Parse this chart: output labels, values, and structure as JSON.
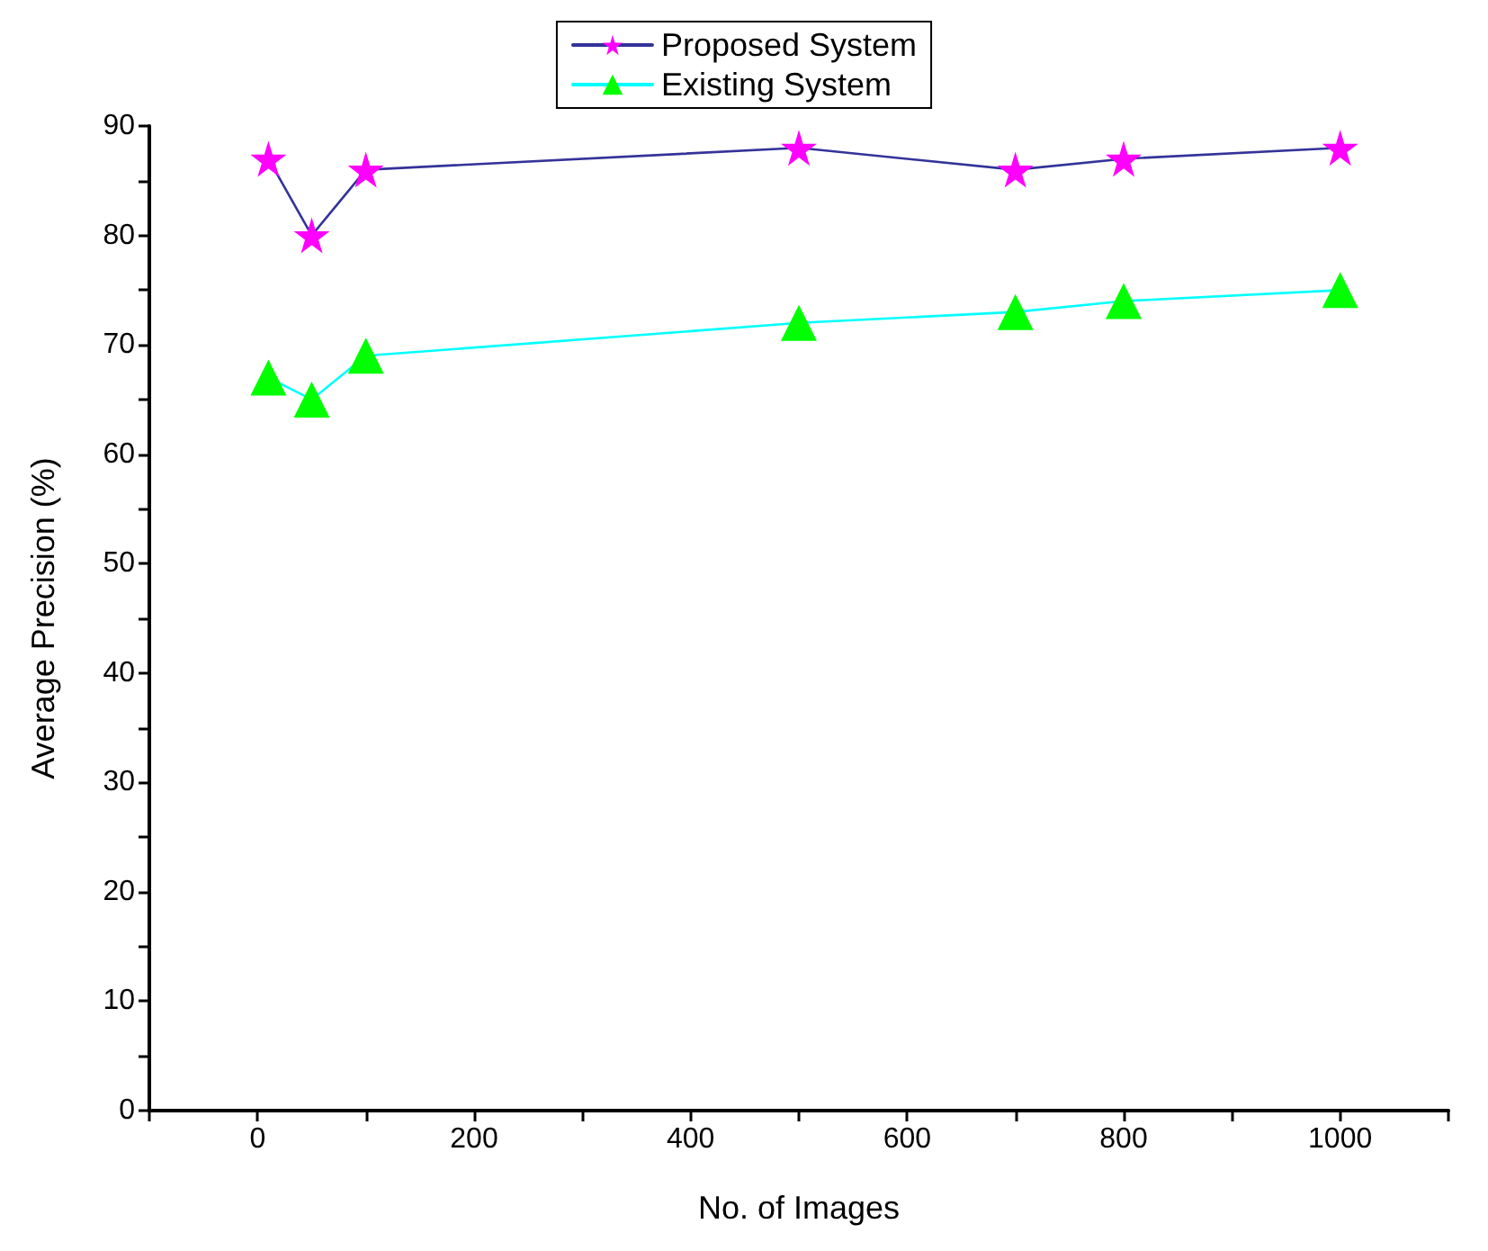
{
  "chart_data": {
    "type": "line",
    "xlabel": "No. of Images",
    "ylabel": "Average Precision (%)",
    "x": [
      10,
      50,
      100,
      500,
      700,
      800,
      1000
    ],
    "series": [
      {
        "name": "Proposed System",
        "color": "#ff00ff",
        "marker": "star",
        "values": [
          87,
          80,
          86,
          88,
          86,
          87,
          88
        ]
      },
      {
        "name": "Existing System",
        "color": "#00ff00",
        "marker": "triangle",
        "values": [
          67,
          65,
          69,
          72,
          73,
          74,
          75
        ]
      }
    ],
    "xlim": [
      -100,
      1100
    ],
    "xticks": [
      {
        "value": -100,
        "label": null
      },
      0,
      {
        "value": 100,
        "label": null
      },
      200,
      {
        "value": 300,
        "label": null
      },
      400,
      {
        "value": 500,
        "label": null
      },
      600,
      {
        "value": 700,
        "label": null
      },
      800,
      {
        "value": 900,
        "label": null
      },
      1000,
      {
        "value": 1100,
        "label": null
      }
    ],
    "ylim": [
      0,
      90
    ],
    "yticks": [
      0,
      {
        "value": 5,
        "label": null
      },
      10,
      {
        "value": 15,
        "label": null
      },
      20,
      {
        "value": 25,
        "label": null
      },
      30,
      {
        "value": 35,
        "label": null
      },
      40,
      {
        "value": 45,
        "label": null
      },
      50,
      {
        "value": 55,
        "label": null
      },
      60,
      {
        "value": 65,
        "label": null
      },
      70,
      {
        "value": 75,
        "label": null
      },
      80,
      {
        "value": 85,
        "label": null
      },
      90
    ],
    "grid": false,
    "legend": "top",
    "line_style": "solid"
  }
}
